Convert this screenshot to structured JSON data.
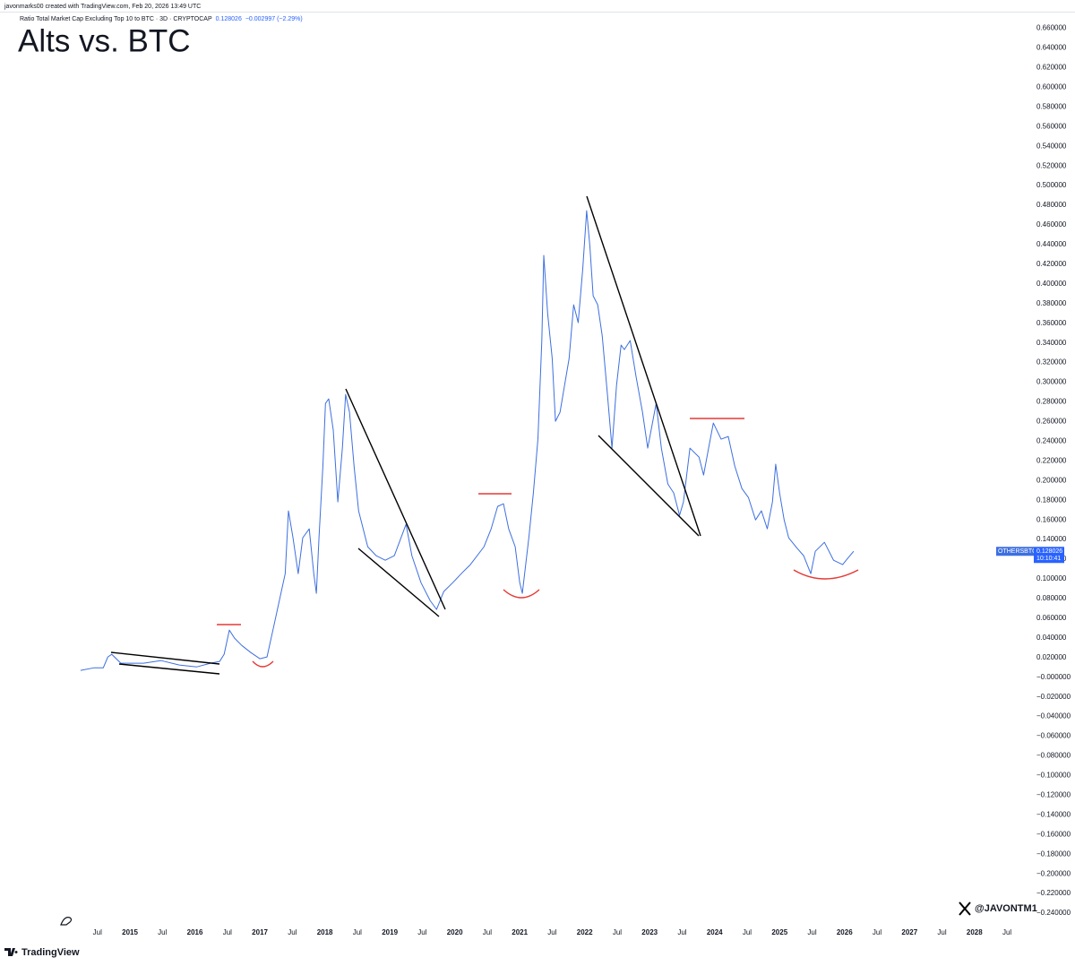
{
  "header": {
    "created_by": "javonmarks00 created with TradingView.com, Feb 20, 2026 13:49 UTC",
    "symbol": "Ratio Total Market Cap Excluding Top 10 to BTC · 3D · CRYPTOCAP",
    "change": "−0.002997 (−2.29%)"
  },
  "chart_data": {
    "type": "line",
    "title": "Alts vs. BTC",
    "x": [
      2014.24,
      2014.45,
      2014.59,
      2014.66,
      2014.72,
      2014.86,
      2015.21,
      2015.48,
      2015.76,
      2016.03,
      2016.24,
      2016.38,
      2016.45,
      2016.53,
      2016.61,
      2016.72,
      2016.86,
      2017.0,
      2017.11,
      2017.21,
      2017.3,
      2017.39,
      2017.44,
      2017.51,
      2017.59,
      2017.66,
      2017.76,
      2017.83,
      2017.87,
      2017.91,
      2017.97,
      2018.01,
      2018.06,
      2018.13,
      2018.2,
      2018.27,
      2018.32,
      2018.38,
      2018.45,
      2018.52,
      2018.59,
      2018.66,
      2018.79,
      2018.93,
      2019.07,
      2019.25,
      2019.34,
      2019.48,
      2019.62,
      2019.72,
      2019.83,
      2019.97,
      2020.1,
      2020.24,
      2020.45,
      2020.56,
      2020.66,
      2020.75,
      2020.83,
      2020.93,
      2021.0,
      2021.04,
      2021.14,
      2021.21,
      2021.28,
      2021.34,
      2021.37,
      2021.43,
      2021.5,
      2021.55,
      2021.62,
      2021.69,
      2021.76,
      2021.83,
      2021.9,
      2021.97,
      2022.03,
      2022.08,
      2022.13,
      2022.2,
      2022.27,
      2022.35,
      2022.42,
      2022.49,
      2022.56,
      2022.61,
      2022.7,
      2022.79,
      2022.89,
      2022.97,
      2023.1,
      2023.18,
      2023.28,
      2023.37,
      2023.46,
      2023.52,
      2023.62,
      2023.76,
      2023.83,
      2023.92,
      2023.98,
      2024.1,
      2024.21,
      2024.31,
      2024.42,
      2024.52,
      2024.63,
      2024.72,
      2024.81,
      2024.89,
      2024.94,
      2025.0,
      2025.07,
      2025.14,
      2025.25,
      2025.37,
      2025.48,
      2025.55,
      2025.69,
      2025.83,
      2025.97,
      2026.06,
      2026.14
    ],
    "series": [
      {
        "name": "OTHERSBTC",
        "color": "#3d6fe0",
        "values": [
          0.0069,
          0.0096,
          0.0096,
          0.0206,
          0.0233,
          0.0142,
          0.0142,
          0.0169,
          0.0124,
          0.0105,
          0.0142,
          0.016,
          0.0233,
          0.0479,
          0.0397,
          0.0324,
          0.0251,
          0.0188,
          0.0206,
          0.0506,
          0.078,
          0.1053,
          0.1692,
          0.1418,
          0.1053,
          0.1418,
          0.1509,
          0.1053,
          0.0853,
          0.1418,
          0.2147,
          0.2785,
          0.2831,
          0.2512,
          0.1783,
          0.2329,
          0.2876,
          0.2694,
          0.2147,
          0.1692,
          0.1509,
          0.1327,
          0.1236,
          0.119,
          0.1236,
          0.1555,
          0.1236,
          0.0962,
          0.078,
          0.0689,
          0.0871,
          0.0962,
          0.1053,
          0.1145,
          0.1327,
          0.1509,
          0.1737,
          0.1764,
          0.1509,
          0.1327,
          0.0962,
          0.0853,
          0.1418,
          0.1874,
          0.2421,
          0.3424,
          0.429,
          0.3697,
          0.3241,
          0.2603,
          0.2694,
          0.2968,
          0.3241,
          0.3788,
          0.3606,
          0.4153,
          0.4745,
          0.4381,
          0.3879,
          0.3788,
          0.347,
          0.2876,
          0.233,
          0.2968,
          0.3378,
          0.3332,
          0.3424,
          0.3059,
          0.2694,
          0.233,
          0.2785,
          0.233,
          0.1965,
          0.1874,
          0.1646,
          0.1783,
          0.233,
          0.2238,
          0.2056,
          0.2375,
          0.2585,
          0.2421,
          0.2448,
          0.2147,
          0.1919,
          0.1828,
          0.16,
          0.1692,
          0.1509,
          0.1783,
          0.2166,
          0.1874,
          0.16,
          0.1418,
          0.1327,
          0.1236,
          0.1053,
          0.1281,
          0.1372,
          0.119,
          0.1145,
          0.1218,
          0.1281
        ]
      }
    ],
    "xlim": [
      2013.0,
      2028.83
    ],
    "ylim": [
      -0.26,
      0.676
    ],
    "xticks": [
      {
        "value": 2014.5,
        "label": "Jul"
      },
      2015,
      {
        "value": 2015.5,
        "label": "Jul"
      },
      2016,
      {
        "value": 2016.5,
        "label": "Jul"
      },
      2017,
      {
        "value": 2017.5,
        "label": "Jul"
      },
      2018,
      {
        "value": 2018.5,
        "label": "Jul"
      },
      2019,
      {
        "value": 2019.5,
        "label": "Jul"
      },
      2020,
      {
        "value": 2020.5,
        "label": "Jul"
      },
      2021,
      {
        "value": 2021.5,
        "label": "Jul"
      },
      2022,
      {
        "value": 2022.5,
        "label": "Jul"
      },
      2023,
      {
        "value": 2023.5,
        "label": "Jul"
      },
      2024,
      {
        "value": 2024.5,
        "label": "Jul"
      },
      2025,
      {
        "value": 2025.5,
        "label": "Jul"
      },
      2026,
      {
        "value": 2026.5,
        "label": "Jul"
      },
      2027,
      {
        "value": 2027.5,
        "label": "Jul"
      },
      2028,
      {
        "value": 2028.5,
        "label": "Jul"
      }
    ],
    "yticks": [
      {
        "value": 0.66,
        "label": "0.660000"
      },
      {
        "value": 0.64,
        "label": "0.640000"
      },
      {
        "value": 0.62,
        "label": "0.620000"
      },
      {
        "value": 0.6,
        "label": "0.600000"
      },
      {
        "value": 0.58,
        "label": "0.580000"
      },
      {
        "value": 0.56,
        "label": "0.560000"
      },
      {
        "value": 0.54,
        "label": "0.540000"
      },
      {
        "value": 0.52,
        "label": "0.520000"
      },
      {
        "value": 0.5,
        "label": "0.500000"
      },
      {
        "value": 0.48,
        "label": "0.480000"
      },
      {
        "value": 0.46,
        "label": "0.460000"
      },
      {
        "value": 0.44,
        "label": "0.440000"
      },
      {
        "value": 0.42,
        "label": "0.420000"
      },
      {
        "value": 0.4,
        "label": "0.400000"
      },
      {
        "value": 0.38,
        "label": "0.380000"
      },
      {
        "value": 0.36,
        "label": "0.360000"
      },
      {
        "value": 0.34,
        "label": "0.340000"
      },
      {
        "value": 0.32,
        "label": "0.320000"
      },
      {
        "value": 0.3,
        "label": "0.300000"
      },
      {
        "value": 0.28,
        "label": "0.280000"
      },
      {
        "value": 0.26,
        "label": "0.260000"
      },
      {
        "value": 0.24,
        "label": "0.240000"
      },
      {
        "value": 0.22,
        "label": "0.220000"
      },
      {
        "value": 0.2,
        "label": "0.200000"
      },
      {
        "value": 0.18,
        "label": "0.180000"
      },
      {
        "value": 0.16,
        "label": "0.160000"
      },
      {
        "value": 0.14,
        "label": "0.140000"
      },
      {
        "value": 0.12,
        "label": "0.120000"
      },
      {
        "value": 0.1,
        "label": "0.100000"
      },
      {
        "value": 0.08,
        "label": "0.080000"
      },
      {
        "value": 0.06,
        "label": "0.060000"
      },
      {
        "value": 0.04,
        "label": "0.040000"
      },
      {
        "value": 0.02,
        "label": "0.020000"
      },
      {
        "value": 0,
        "label": "−0.000000"
      },
      {
        "value": -0.02,
        "label": "−0.020000"
      },
      {
        "value": -0.04,
        "label": "−0.040000"
      },
      {
        "value": -0.06,
        "label": "−0.060000"
      },
      {
        "value": -0.08,
        "label": "−0.080000"
      },
      {
        "value": -0.1,
        "label": "−0.100000"
      },
      {
        "value": -0.12,
        "label": "−0.120000"
      },
      {
        "value": -0.14,
        "label": "−0.140000"
      },
      {
        "value": -0.16,
        "label": "−0.160000"
      },
      {
        "value": -0.18,
        "label": "−0.180000"
      },
      {
        "value": -0.2,
        "label": "−0.200000"
      },
      {
        "value": -0.22,
        "label": "−0.220000"
      },
      {
        "value": -0.24,
        "label": "−0.240000"
      }
    ],
    "last_value": 0.128026,
    "countdown": "10:10:41"
  },
  "watermark": "@JAVONTM1",
  "brand": "TradingView"
}
